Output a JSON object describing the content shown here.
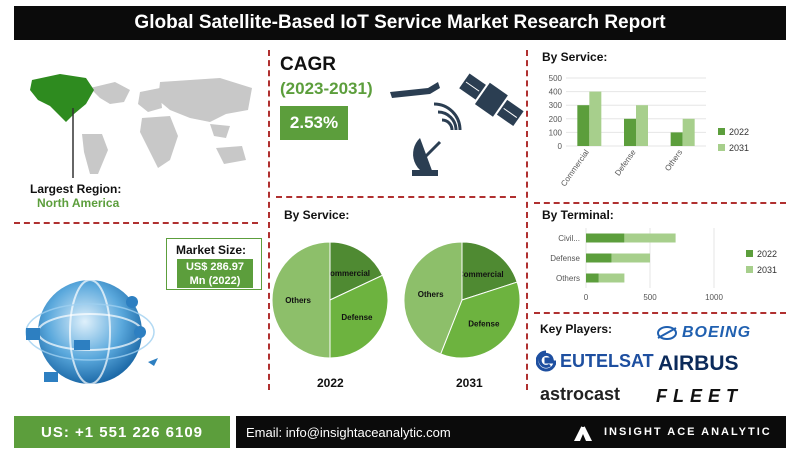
{
  "title": "Global Satellite-Based IoT Service Market Research Report",
  "cagr": {
    "label": "CAGR",
    "period": "(2023-2031)",
    "value": "2.53%"
  },
  "largest_region": {
    "label": "Largest Region:",
    "value": "North America"
  },
  "market_size": {
    "label": "Market Size:",
    "value_line1": "US$ 286.97",
    "value_line2": "Mn (2022)"
  },
  "service_pies": {
    "title": "By Service:",
    "years": [
      "2022",
      "2031"
    ]
  },
  "key_players": {
    "title": "Key Players:",
    "names": [
      "EUTELSAT",
      "BOEING",
      "AIRBUS",
      "astrocast",
      "FLEET"
    ]
  },
  "footer": {
    "phone": "US: +1 551 226 6109",
    "email": "Email: info@insightaceanalytic.com",
    "brand": "INSIGHT ACE ANALYTIC"
  },
  "colors": {
    "green_dark": "#5c9e3c",
    "green_light": "#a7cf8c",
    "pie_dark": "#4f8a32",
    "pie_mid": "#6db33f",
    "pie_light": "#8dbf6a"
  },
  "chart_data": [
    {
      "type": "bar",
      "title": "By Service:",
      "categories": [
        "Commercial",
        "Defense",
        "Others"
      ],
      "series": [
        {
          "name": "2022",
          "values": [
            300,
            200,
            100
          ]
        },
        {
          "name": "2031",
          "values": [
            400,
            300,
            200
          ]
        }
      ],
      "ylim": [
        0,
        500
      ],
      "yticks": [
        "0",
        "100",
        "200",
        "300",
        "400",
        "500"
      ],
      "legend": "right"
    },
    {
      "type": "bar",
      "orientation": "horizontal",
      "title": "By Terminal:",
      "categories": [
        "Civil...",
        "Defense",
        "Others"
      ],
      "series": [
        {
          "name": "2022",
          "values": [
            300,
            200,
            100
          ]
        },
        {
          "name": "2031",
          "values": [
            400,
            300,
            200
          ]
        }
      ],
      "xlim": [
        0,
        1000
      ],
      "xticks": [
        "0",
        "500",
        "1000"
      ],
      "legend": "right"
    },
    {
      "type": "pie",
      "title": "2022",
      "labels": [
        "Commercial",
        "Defense",
        "Others"
      ],
      "values": [
        18,
        32,
        50
      ]
    },
    {
      "type": "pie",
      "title": "2031",
      "labels": [
        "Commercial",
        "Defense",
        "Others"
      ],
      "values": [
        20,
        36,
        44
      ]
    }
  ]
}
